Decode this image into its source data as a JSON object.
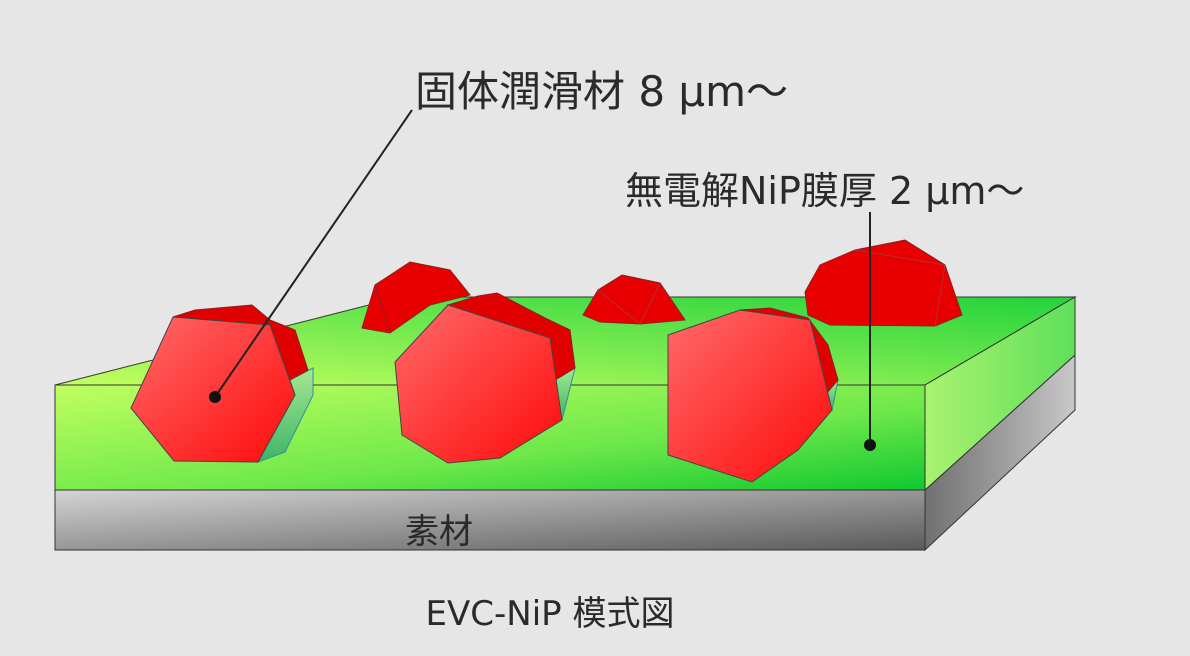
{
  "labels": {
    "solid_lubricant": "固体潤滑材 8 μm〜",
    "nip_film": "無電解NiP膜厚 2 μm〜",
    "substrate": "素材",
    "caption": "EVC-NiP 模式図"
  },
  "colors": {
    "background": "#e6e6e6",
    "nip_layer": "#3ed83e",
    "particle": "#ff2020",
    "substrate": "#a0a0a0"
  }
}
